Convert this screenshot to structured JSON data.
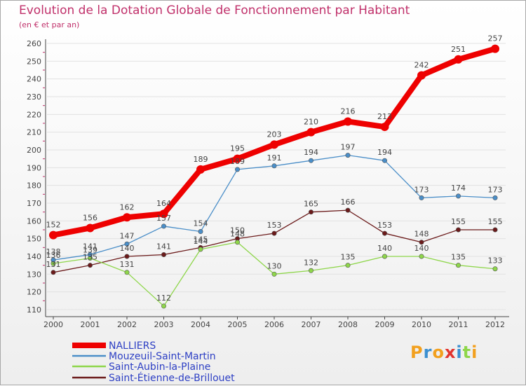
{
  "title": "Evolution de la Dotation Globale de Fonctionnement par Habitant",
  "subtitle": "(en € et par an)",
  "brand": "Proxiti",
  "chart_data": {
    "type": "line",
    "title": "Evolution de la Dotation Globale de Fonctionnement par Habitant",
    "ylabel": "(en € et par an)",
    "xlabel": "",
    "ylim": [
      110,
      260
    ],
    "yticks": [
      110,
      120,
      130,
      140,
      150,
      160,
      170,
      180,
      190,
      200,
      210,
      220,
      230,
      240,
      250,
      260
    ],
    "x": [
      "2000",
      "2001",
      "2002",
      "2003",
      "2004",
      "2005",
      "2006",
      "2007",
      "2008",
      "2009",
      "2010",
      "2011",
      "2012"
    ],
    "series": [
      {
        "name": "NALLIERS",
        "color": "#ee0000",
        "values": [
          152,
          156,
          162,
          164,
          189,
          195,
          203,
          210,
          216,
          213,
          242,
          251,
          257
        ]
      },
      {
        "name": "Mouzeuil-Saint-Martin",
        "color": "#4a8ec8",
        "values": [
          138,
          141,
          147,
          157,
          154,
          189,
          191,
          194,
          197,
          194,
          173,
          174,
          173
        ]
      },
      {
        "name": "Saint-Aubin-la-Plaine",
        "color": "#8ed64a",
        "values": [
          136,
          139,
          131,
          112,
          144,
          148,
          130,
          132,
          135,
          140,
          140,
          135,
          133
        ]
      },
      {
        "name": "Saint-Étienne-de-Brillouet",
        "color": "#6b1a1a",
        "values": [
          131,
          135,
          140,
          141,
          145,
          150,
          153,
          165,
          166,
          153,
          148,
          155,
          155
        ]
      }
    ]
  }
}
